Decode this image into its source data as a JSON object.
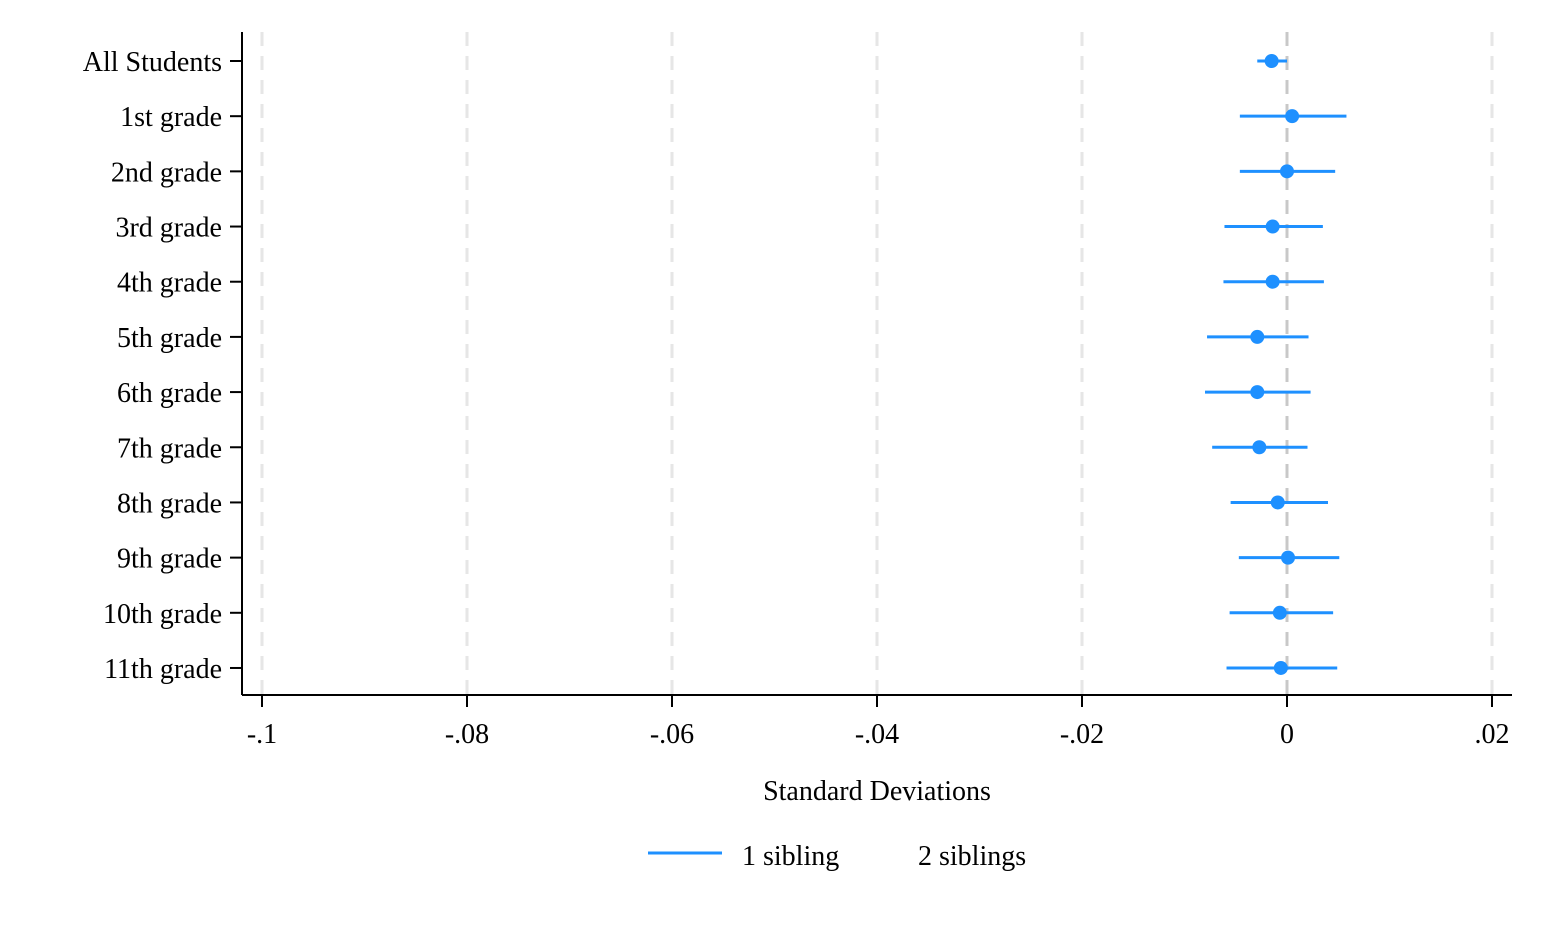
{
  "chart_data": {
    "type": "scatter",
    "title": "",
    "xlabel": "Standard Deviations",
    "ylabel": "",
    "xlim": [
      -0.1,
      0.02
    ],
    "xticks": [
      -0.1,
      -0.08,
      -0.06,
      -0.04,
      -0.02,
      0,
      0.02
    ],
    "xtick_labels": [
      "-.1",
      "-.08",
      "-.06",
      "-.04",
      "-.02",
      "0",
      ".02"
    ],
    "reference_line_x": 0,
    "grid": "vertical dashed",
    "categories": [
      "All Students",
      "1st grade",
      "2nd grade",
      "3rd grade",
      "4th grade",
      "5th grade",
      "6th grade",
      "7th grade",
      "8th grade",
      "9th grade",
      "10th grade",
      "11th grade"
    ],
    "series": [
      {
        "name": "1 sibling",
        "color": "#1e90ff",
        "estimates": [
          -0.0015,
          0.0005,
          0.0,
          -0.0014,
          -0.0014,
          -0.0029,
          -0.0029,
          -0.0027,
          -0.0009,
          0.0001,
          -0.0007,
          -0.0006
        ],
        "ci_low": [
          -0.0029,
          -0.0046,
          -0.0046,
          -0.0061,
          -0.0062,
          -0.0078,
          -0.008,
          -0.0073,
          -0.0055,
          -0.0047,
          -0.0056,
          -0.0059
        ],
        "ci_high": [
          0.0,
          0.0058,
          0.0047,
          0.0035,
          0.0036,
          0.0021,
          0.0023,
          0.002,
          0.004,
          0.0051,
          0.0045,
          0.0049
        ]
      },
      {
        "name": "2 siblings",
        "color": "#1e90ff",
        "estimates": [],
        "ci_low": [],
        "ci_high": []
      }
    ],
    "legend_position": "bottom-center"
  }
}
